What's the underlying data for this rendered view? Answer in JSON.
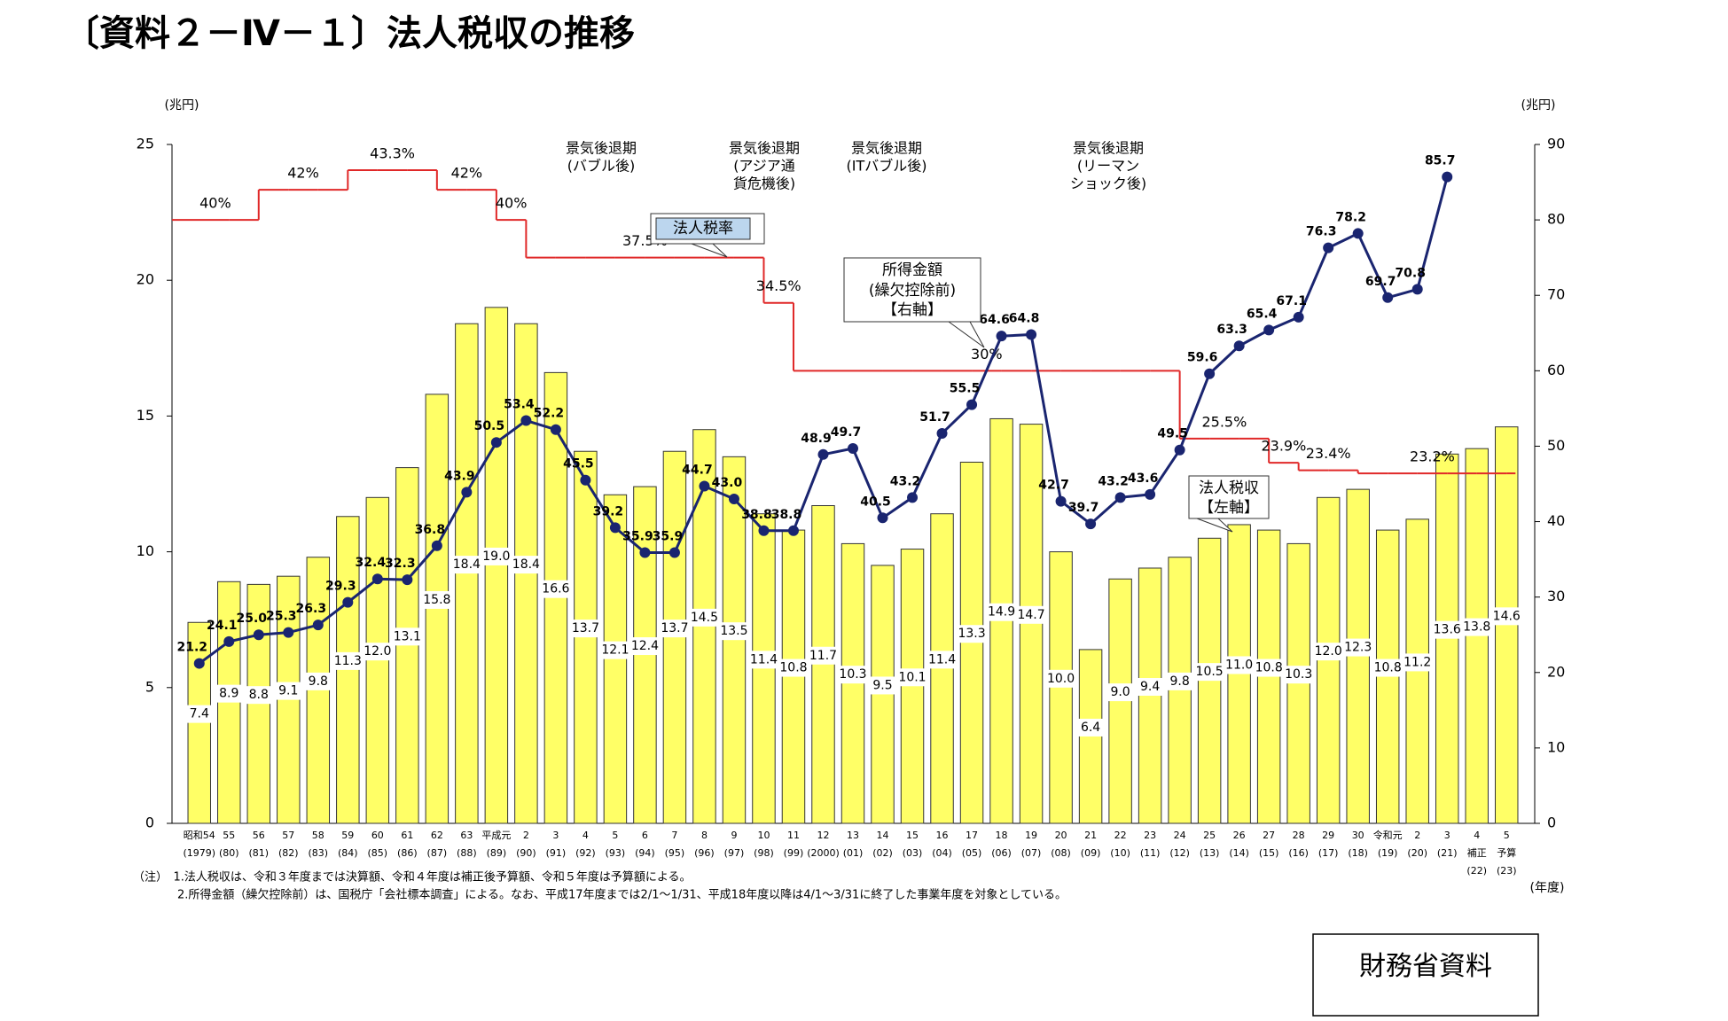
{
  "chart_data": {
    "type": "bar",
    "title": "〔資料２－Ⅳ－１〕法人税収の推移",
    "left_unit": "(兆円)",
    "right_unit": "(兆円)",
    "x_unit": "(年度)",
    "categories": [
      "昭和54",
      "55",
      "56",
      "57",
      "58",
      "59",
      "60",
      "61",
      "62",
      "63",
      "平成元",
      "2",
      "3",
      "4",
      "5",
      "6",
      "7",
      "8",
      "9",
      "10",
      "11",
      "12",
      "13",
      "14",
      "15",
      "16",
      "17",
      "18",
      "19",
      "20",
      "21",
      "22",
      "23",
      "24",
      "25",
      "26",
      "27",
      "28",
      "29",
      "30",
      "令和元",
      "2",
      "3",
      "4",
      "5"
    ],
    "category_notes": [
      null,
      null,
      null,
      null,
      null,
      null,
      null,
      null,
      null,
      null,
      null,
      null,
      null,
      null,
      null,
      null,
      null,
      null,
      null,
      null,
      null,
      null,
      null,
      null,
      null,
      null,
      null,
      null,
      null,
      null,
      null,
      null,
      null,
      null,
      null,
      null,
      null,
      null,
      null,
      null,
      null,
      null,
      null,
      "補正",
      "予算"
    ],
    "years": [
      "(1979)",
      "(80)",
      "(81)",
      "(82)",
      "(83)",
      "(84)",
      "(85)",
      "(86)",
      "(87)",
      "(88)",
      "(89)",
      "(90)",
      "(91)",
      "(92)",
      "(93)",
      "(94)",
      "(95)",
      "(96)",
      "(97)",
      "(98)",
      "(99)",
      "(2000)",
      "(01)",
      "(02)",
      "(03)",
      "(04)",
      "(05)",
      "(06)",
      "(07)",
      "(08)",
      "(09)",
      "(10)",
      "(11)",
      "(12)",
      "(13)",
      "(14)",
      "(15)",
      "(16)",
      "(17)",
      "(18)",
      "(19)",
      "(20)",
      "(21)",
      "(22)",
      "(23)"
    ],
    "series": [
      {
        "name": "法人税収",
        "type": "bar",
        "color": "#ffff66",
        "values": [
          7.4,
          8.9,
          8.8,
          9.1,
          9.8,
          11.3,
          12.0,
          13.1,
          15.8,
          18.4,
          19.0,
          18.4,
          16.6,
          13.7,
          12.1,
          12.4,
          13.7,
          14.5,
          13.5,
          11.4,
          10.8,
          11.7,
          10.3,
          9.5,
          10.1,
          11.4,
          13.3,
          14.9,
          14.7,
          10.0,
          6.4,
          9.0,
          9.4,
          9.8,
          10.5,
          11.0,
          10.8,
          10.3,
          12.0,
          12.3,
          10.8,
          11.2,
          13.6,
          13.8,
          14.6
        ],
        "value_labels": [
          "7.4",
          "8.9",
          "8.8",
          "9.1",
          "9.8",
          "11.3",
          "12.0",
          "13.1",
          "15.8",
          "18.4",
          "19.0",
          "18.4",
          "16.6",
          "13.7",
          "12.1",
          "12.4",
          "13.7",
          "14.5",
          "13.5",
          "11.4",
          "10.8",
          "11.7",
          "10.3",
          "9.5",
          "10.1",
          "11.4",
          "13.3",
          "14.9",
          "14.7",
          "10.0",
          "6.4",
          "9.0",
          "9.4",
          "9.8",
          "10.5",
          "11.0",
          "10.8",
          "10.3",
          "12.0",
          "12.3",
          "10.8",
          "11.2",
          "13.6",
          "13.8",
          "14.6"
        ]
      },
      {
        "name": "所得金額",
        "type": "line",
        "axis": "y2",
        "color": "#1a2570",
        "values": [
          21.2,
          24.1,
          25.0,
          25.3,
          26.3,
          29.3,
          32.4,
          32.3,
          36.8,
          43.9,
          50.5,
          53.4,
          52.2,
          45.5,
          39.2,
          35.9,
          35.9,
          44.7,
          43.0,
          38.8,
          38.8,
          48.9,
          49.7,
          40.5,
          43.2,
          51.7,
          55.5,
          64.6,
          64.8,
          42.7,
          39.7,
          43.2,
          43.6,
          49.5,
          59.6,
          63.3,
          65.4,
          67.1,
          76.3,
          78.2,
          69.7,
          70.8,
          85.7,
          null,
          null
        ],
        "value_labels": [
          "21.2",
          "24.1",
          "25.0",
          "25.3",
          "26.3",
          "29.3",
          "32.4",
          "32.3",
          "36.8",
          "43.9",
          "50.5",
          "53.4",
          "52.2",
          "45.5",
          "39.2",
          "35.9",
          "35.9",
          "44.7",
          "43.0",
          "38.8",
          "38.8",
          "48.9",
          "49.7",
          "40.5",
          "43.2",
          "51.7",
          "55.5",
          "64.6",
          "64.8",
          "42.7",
          "39.7",
          "43.2",
          "43.6",
          "49.5",
          "59.6",
          "63.3",
          "65.4",
          "67.1",
          "76.3",
          "78.2",
          "69.7",
          "70.8",
          "85.7",
          null,
          null
        ]
      },
      {
        "name": "法人税率",
        "type": "step",
        "axis": "y3",
        "color": "#e02828",
        "values": [
          40,
          40,
          42,
          42,
          42,
          43.3,
          43.3,
          43.3,
          42,
          42,
          40,
          37.5,
          37.5,
          37.5,
          37.5,
          37.5,
          37.5,
          37.5,
          37.5,
          34.5,
          30,
          30,
          30,
          30,
          30,
          30,
          30,
          30,
          30,
          30,
          30,
          30,
          30,
          25.5,
          25.5,
          25.5,
          23.9,
          23.4,
          23.4,
          23.2,
          23.2,
          23.2,
          23.2,
          23.2,
          23.2
        ],
        "value_labels": [
          "40%",
          null,
          "42%",
          null,
          null,
          "43.3%",
          null,
          null,
          "42%",
          null,
          "40%",
          "37.5%",
          null,
          null,
          null,
          null,
          null,
          null,
          null,
          "34.5%",
          "30%",
          null,
          null,
          null,
          null,
          null,
          null,
          null,
          null,
          null,
          null,
          null,
          null,
          "25.5%",
          null,
          null,
          "23.9%",
          "23.4%",
          null,
          "23.2%",
          null,
          null,
          null,
          null,
          null
        ]
      }
    ],
    "ylim": [
      0,
      25
    ],
    "yticks": [
      0,
      5,
      10,
      15,
      20,
      25
    ],
    "y2lim": [
      0,
      90
    ],
    "y2ticks": [
      0,
      10,
      20,
      30,
      40,
      50,
      60,
      70,
      80,
      90
    ],
    "y3lim": [
      0,
      45
    ],
    "recessions": [
      {
        "lines": [
          "景気後退期",
          "(バブル後)"
        ]
      },
      {
        "lines": [
          "景気後退期",
          "(アジア通",
          "貨危機後)"
        ]
      },
      {
        "lines": [
          "景気後退期",
          "(ITバブル後)"
        ]
      },
      {
        "lines": [
          "景気後退期",
          "(リーマン",
          "ショック後)"
        ]
      }
    ],
    "callout_extra": {
      "income": [
        "(繰欠控除前)",
        "【右軸】"
      ],
      "revenue": [
        "【左軸】"
      ]
    },
    "notes": [
      "（注）　1.法人税収は、令和３年度までは決算額、令和４年度は補正後予算額、令和５年度は予算額による。",
      "2.所得金額（繰欠控除前）は、国税庁「会社標本調査」による。なお、平成17年度までは2/1～1/31、平成18年度以降は4/1～3/31に終了した事業年度を対象としている。"
    ],
    "source": "財務省資料"
  }
}
